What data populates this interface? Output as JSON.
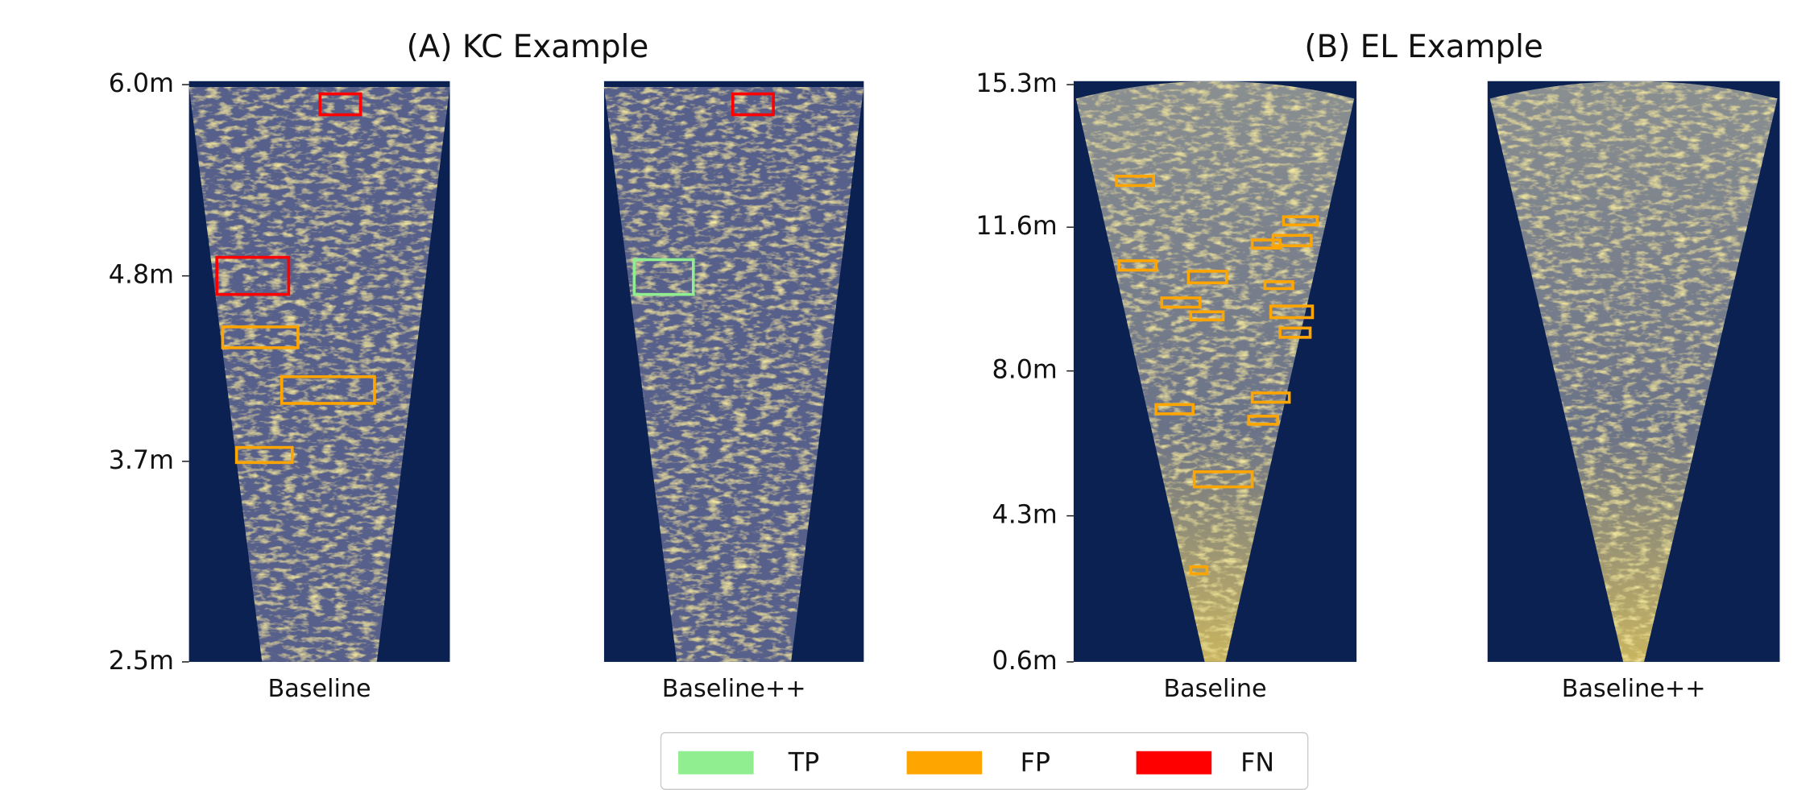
{
  "panels": [
    {
      "title": "(A) KC Example",
      "yticks": [
        "6.0m",
        "4.8m",
        "3.7m",
        "2.5m"
      ],
      "images": [
        "Baseline",
        "Baseline++"
      ]
    },
    {
      "title": "(B) EL Example",
      "yticks": [
        "15.3m",
        "11.6m",
        "8.0m",
        "4.3m",
        "0.6m"
      ],
      "images": [
        "Baseline",
        "Baseline++"
      ]
    }
  ],
  "legend": [
    {
      "label": "TP",
      "color": "#90ee90"
    },
    {
      "label": "FP",
      "color": "#ffa500"
    },
    {
      "label": "FN",
      "color": "#ff0000"
    }
  ]
}
